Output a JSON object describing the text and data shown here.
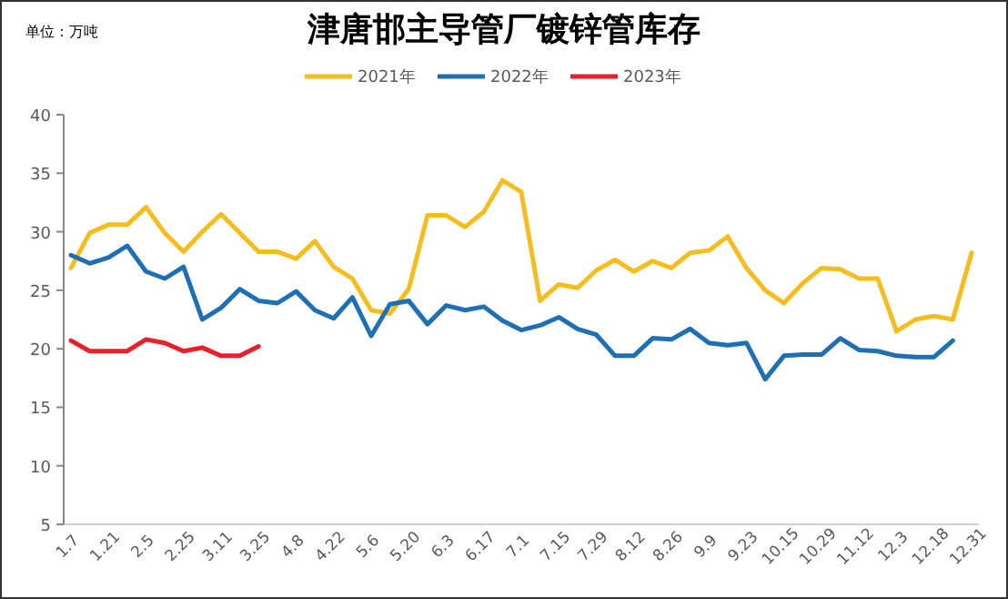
{
  "chart_data": {
    "type": "line",
    "title": "津唐邯主导管厂镀锌管库存",
    "annotations": [
      "单位：万吨"
    ],
    "categories": [
      "1.7",
      null,
      "1.21",
      null,
      "2.5",
      null,
      "2.25",
      null,
      "3.11",
      null,
      "3.25",
      null,
      "4.8",
      null,
      "4.22",
      null,
      "5.6",
      null,
      "5.20",
      null,
      "6.3",
      null,
      "6.17",
      null,
      "7.1",
      null,
      "7.15",
      null,
      "7.29",
      null,
      "8.12",
      null,
      "8.26",
      null,
      "9.9",
      null,
      "9.23",
      null,
      "10.15",
      null,
      "10.29",
      null,
      "11.12",
      null,
      "12.3",
      null,
      "12.18",
      null,
      "12.31"
    ],
    "series": [
      {
        "name": "2021年",
        "color": "#f5be1e",
        "values": [
          26.9,
          29.9,
          30.6,
          30.6,
          32.1,
          29.9,
          28.3,
          30.0,
          31.5,
          29.9,
          28.3,
          28.3,
          27.7,
          29.2,
          27.0,
          26.0,
          23.3,
          23.0,
          25.1,
          31.4,
          31.4,
          30.4,
          31.7,
          34.4,
          33.4,
          24.1,
          25.5,
          25.2,
          26.7,
          27.6,
          26.6,
          27.5,
          26.9,
          28.2,
          28.4,
          29.6,
          26.9,
          25.0,
          23.9,
          25.6,
          26.9,
          26.8,
          26.0,
          26.0,
          21.5,
          22.5,
          22.8,
          22.5,
          28.2
        ]
      },
      {
        "name": "2022年",
        "color": "#1f6fb5",
        "values": [
          28.0,
          27.3,
          27.8,
          28.8,
          26.6,
          26.0,
          27.0,
          22.5,
          23.5,
          25.1,
          24.1,
          23.9,
          24.9,
          23.3,
          22.6,
          24.4,
          21.1,
          23.8,
          24.1,
          22.1,
          23.7,
          23.3,
          23.6,
          22.4,
          21.6,
          22.0,
          22.7,
          21.7,
          21.2,
          19.4,
          19.4,
          20.9,
          20.8,
          21.7,
          20.5,
          20.3,
          20.5,
          17.4,
          19.4,
          19.5,
          19.5,
          20.9,
          19.9,
          19.8,
          19.4,
          19.3,
          19.3,
          20.7,
          null
        ]
      },
      {
        "name": "2023年",
        "color": "#e8202a",
        "values": [
          20.7,
          19.8,
          19.8,
          19.8,
          20.8,
          20.5,
          19.8,
          20.1,
          19.4,
          19.4,
          20.2,
          null,
          null,
          null,
          null,
          null,
          null,
          null,
          null,
          null,
          null,
          null,
          null,
          null,
          null,
          null,
          null,
          null,
          null,
          null,
          null,
          null,
          null,
          null,
          null,
          null,
          null,
          null,
          null,
          null,
          null,
          null,
          null,
          null,
          null,
          null,
          null,
          null,
          null
        ]
      }
    ],
    "ylim": [
      5,
      40
    ],
    "yticks": [
      5,
      10,
      15,
      20,
      25,
      30,
      35,
      40
    ],
    "legend": "top"
  }
}
